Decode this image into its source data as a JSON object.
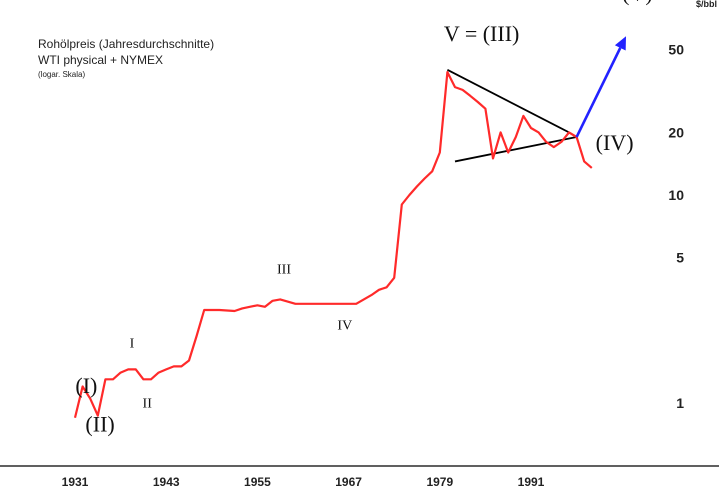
{
  "chart_data": {
    "type": "line",
    "title_lines": [
      "Rohölpreis (Jahresdurchschnitte)",
      "WTI physical + NYMEX",
      "(logar. Skala)"
    ],
    "ylabel": "$/bbl",
    "yscale": "log",
    "ylim": [
      0.75,
      80
    ],
    "xlim": [
      1930,
      2016
    ],
    "x_ticks": [
      1931,
      1943,
      1955,
      1967,
      1979,
      1991
    ],
    "y_ticks": [
      1,
      5,
      10,
      20,
      50
    ],
    "series": [
      {
        "color": "#ff2a2a",
        "x": [
          1931,
          1932,
          1933,
          1934,
          1935,
          1936,
          1937,
          1938,
          1939,
          1940,
          1941,
          1942,
          1943,
          1944,
          1945,
          1946,
          1947,
          1948,
          1950,
          1952,
          1953,
          1954,
          1955,
          1956,
          1957,
          1958,
          1960,
          1962,
          1965,
          1968,
          1970,
          1971,
          1972,
          1973,
          1974,
          1975,
          1976,
          1977,
          1978,
          1979,
          1980,
          1981,
          1982,
          1983,
          1984,
          1985,
          1986,
          1987,
          1988,
          1989,
          1990,
          1991,
          1992,
          1993,
          1994,
          1995,
          1996,
          1997,
          1998,
          1999
        ],
        "y": [
          0.85,
          1.2,
          1.05,
          0.87,
          1.3,
          1.3,
          1.4,
          1.45,
          1.45,
          1.3,
          1.3,
          1.4,
          1.45,
          1.5,
          1.5,
          1.6,
          2.1,
          2.8,
          2.8,
          2.77,
          2.85,
          2.9,
          2.95,
          2.9,
          3.1,
          3.15,
          3.0,
          3.0,
          3.0,
          3.0,
          3.3,
          3.5,
          3.6,
          4.0,
          9.0,
          10.0,
          11.0,
          12.0,
          13.0,
          16.0,
          39.0,
          33.0,
          32.0,
          30.0,
          28.0,
          26.0,
          15.0,
          20.0,
          16.0,
          19.0,
          24.0,
          21.0,
          20.0,
          18.0,
          17.0,
          18.0,
          20.0,
          19.0,
          14.5,
          13.5
        ]
      }
    ],
    "trendlines": [
      {
        "color": "#000000",
        "x": [
          1980,
          1996
        ],
        "y": [
          40,
          20
        ]
      },
      {
        "color": "#000000",
        "x": [
          1981,
          1997
        ],
        "y": [
          14.5,
          19
        ]
      }
    ],
    "arrow": {
      "color": "#2222ff",
      "x": [
        1997,
        2003.5
      ],
      "y": [
        19,
        58
      ]
    },
    "wave_labels": [
      {
        "text": "(I)",
        "x": 1932.5,
        "y": 1.12
      },
      {
        "text": "(II)",
        "x": 1934.3,
        "y": 0.73
      },
      {
        "text": "I",
        "x": 1938.5,
        "y": 1.85
      },
      {
        "text": "II",
        "x": 1940.5,
        "y": 0.95
      },
      {
        "text": "III",
        "x": 1958.5,
        "y": 4.2
      },
      {
        "text": "IV",
        "x": 1966.5,
        "y": 2.25
      },
      {
        "text": "V = (III)",
        "x": 1984.5,
        "y": 55
      },
      {
        "text": "(IV)",
        "x": 2002,
        "y": 16.5
      },
      {
        "text": "(V)",
        "x": 2005,
        "y": 86
      }
    ]
  }
}
